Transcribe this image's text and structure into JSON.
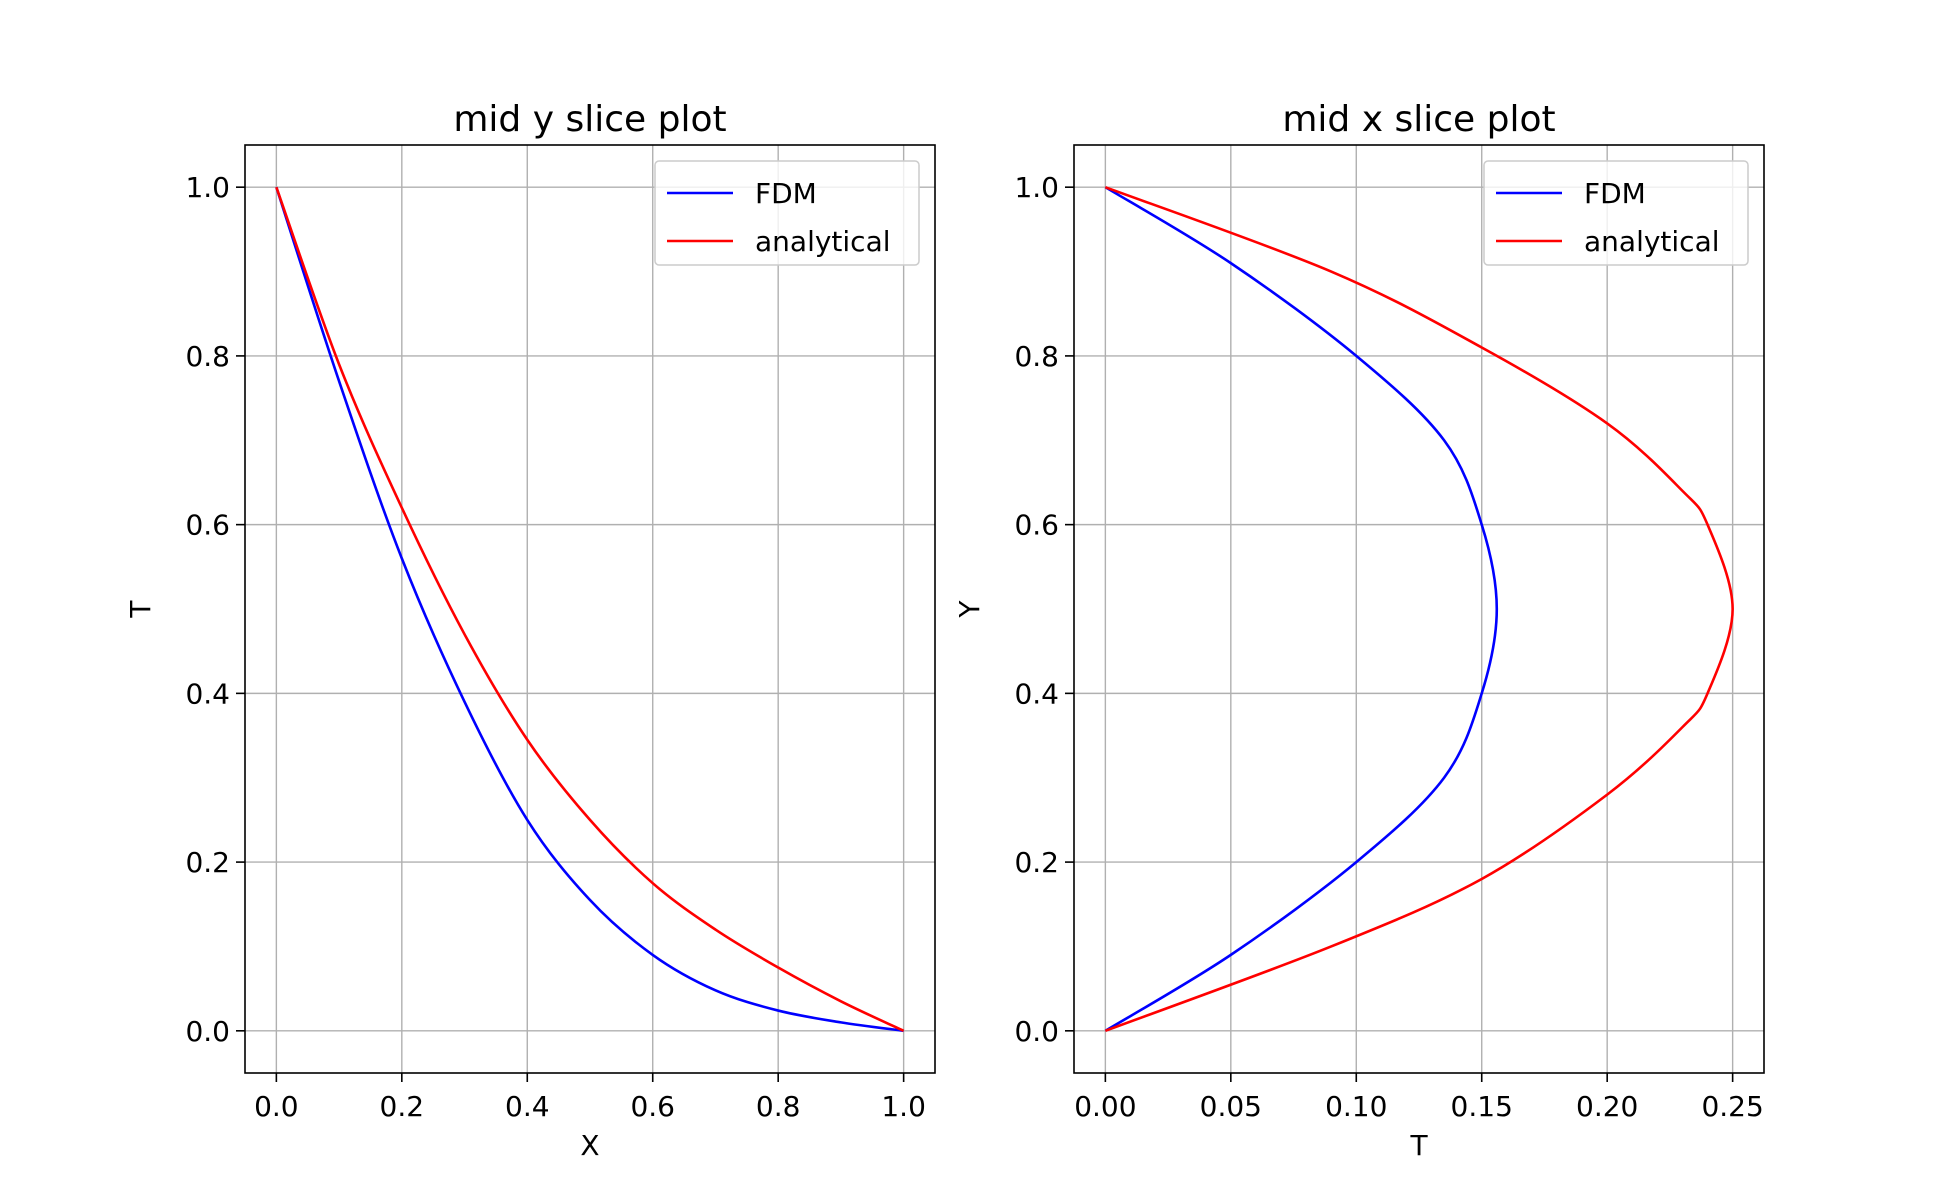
{
  "chart_data": [
    {
      "type": "line",
      "title": "mid y slice plot",
      "xlabel": "X",
      "ylabel": "T",
      "xlim": [
        -0.05,
        1.05
      ],
      "ylim": [
        -0.05,
        1.05
      ],
      "xticks": [
        "0.0",
        "0.2",
        "0.4",
        "0.6",
        "0.8",
        "1.0"
      ],
      "xtick_values": [
        0,
        0.2,
        0.4,
        0.6,
        0.8,
        1.0
      ],
      "yticks": [
        "0.0",
        "0.2",
        "0.4",
        "0.6",
        "0.8",
        "1.0"
      ],
      "ytick_values": [
        0,
        0.2,
        0.4,
        0.6,
        0.8,
        1.0
      ],
      "grid": true,
      "legend_position": "top-right",
      "series": [
        {
          "name": "FDM",
          "color": "#0000ff",
          "x": [
            0.0,
            0.1,
            0.2,
            0.3,
            0.4,
            0.5,
            0.6,
            0.7,
            0.8,
            0.9,
            1.0
          ],
          "y": [
            1.0,
            0.77,
            0.56,
            0.39,
            0.25,
            0.155,
            0.09,
            0.048,
            0.024,
            0.01,
            0.0
          ]
        },
        {
          "name": "analytical",
          "color": "#ff0000",
          "x": [
            0.0,
            0.1,
            0.2,
            0.3,
            0.4,
            0.5,
            0.6,
            0.7,
            0.8,
            0.9,
            1.0
          ],
          "y": [
            1.0,
            0.79,
            0.62,
            0.47,
            0.345,
            0.25,
            0.175,
            0.12,
            0.075,
            0.035,
            0.0
          ]
        }
      ]
    },
    {
      "type": "line",
      "title": "mid x slice plot",
      "xlabel": "T",
      "ylabel": "Y",
      "xlim": [
        -0.0125,
        0.2625
      ],
      "ylim": [
        -0.05,
        1.05
      ],
      "xticks": [
        "0.00",
        "0.05",
        "0.10",
        "0.15",
        "0.20",
        "0.25"
      ],
      "xtick_values": [
        0,
        0.05,
        0.1,
        0.15,
        0.2,
        0.25
      ],
      "yticks": [
        "0.0",
        "0.2",
        "0.4",
        "0.6",
        "0.8",
        "1.0"
      ],
      "ytick_values": [
        0,
        0.2,
        0.4,
        0.6,
        0.8,
        1.0
      ],
      "grid": true,
      "legend_position": "top-right",
      "series": [
        {
          "name": "FDM",
          "color": "#0000ff",
          "x": [
            0.0,
            0.05,
            0.1,
            0.135,
            0.15,
            0.156,
            0.15,
            0.135,
            0.1,
            0.05,
            0.0
          ],
          "y": [
            0.0,
            0.09,
            0.2,
            0.3,
            0.4,
            0.5,
            0.6,
            0.7,
            0.8,
            0.91,
            1.0
          ]
        },
        {
          "name": "analytical",
          "color": "#ff0000",
          "x": [
            0.0,
            0.09,
            0.15,
            0.2,
            0.23,
            0.24,
            0.25,
            0.24,
            0.23,
            0.2,
            0.15,
            0.09,
            0.0
          ],
          "y": [
            0.0,
            0.1,
            0.18,
            0.28,
            0.36,
            0.4,
            0.5,
            0.6,
            0.64,
            0.72,
            0.81,
            0.9,
            1.0
          ]
        }
      ]
    }
  ]
}
